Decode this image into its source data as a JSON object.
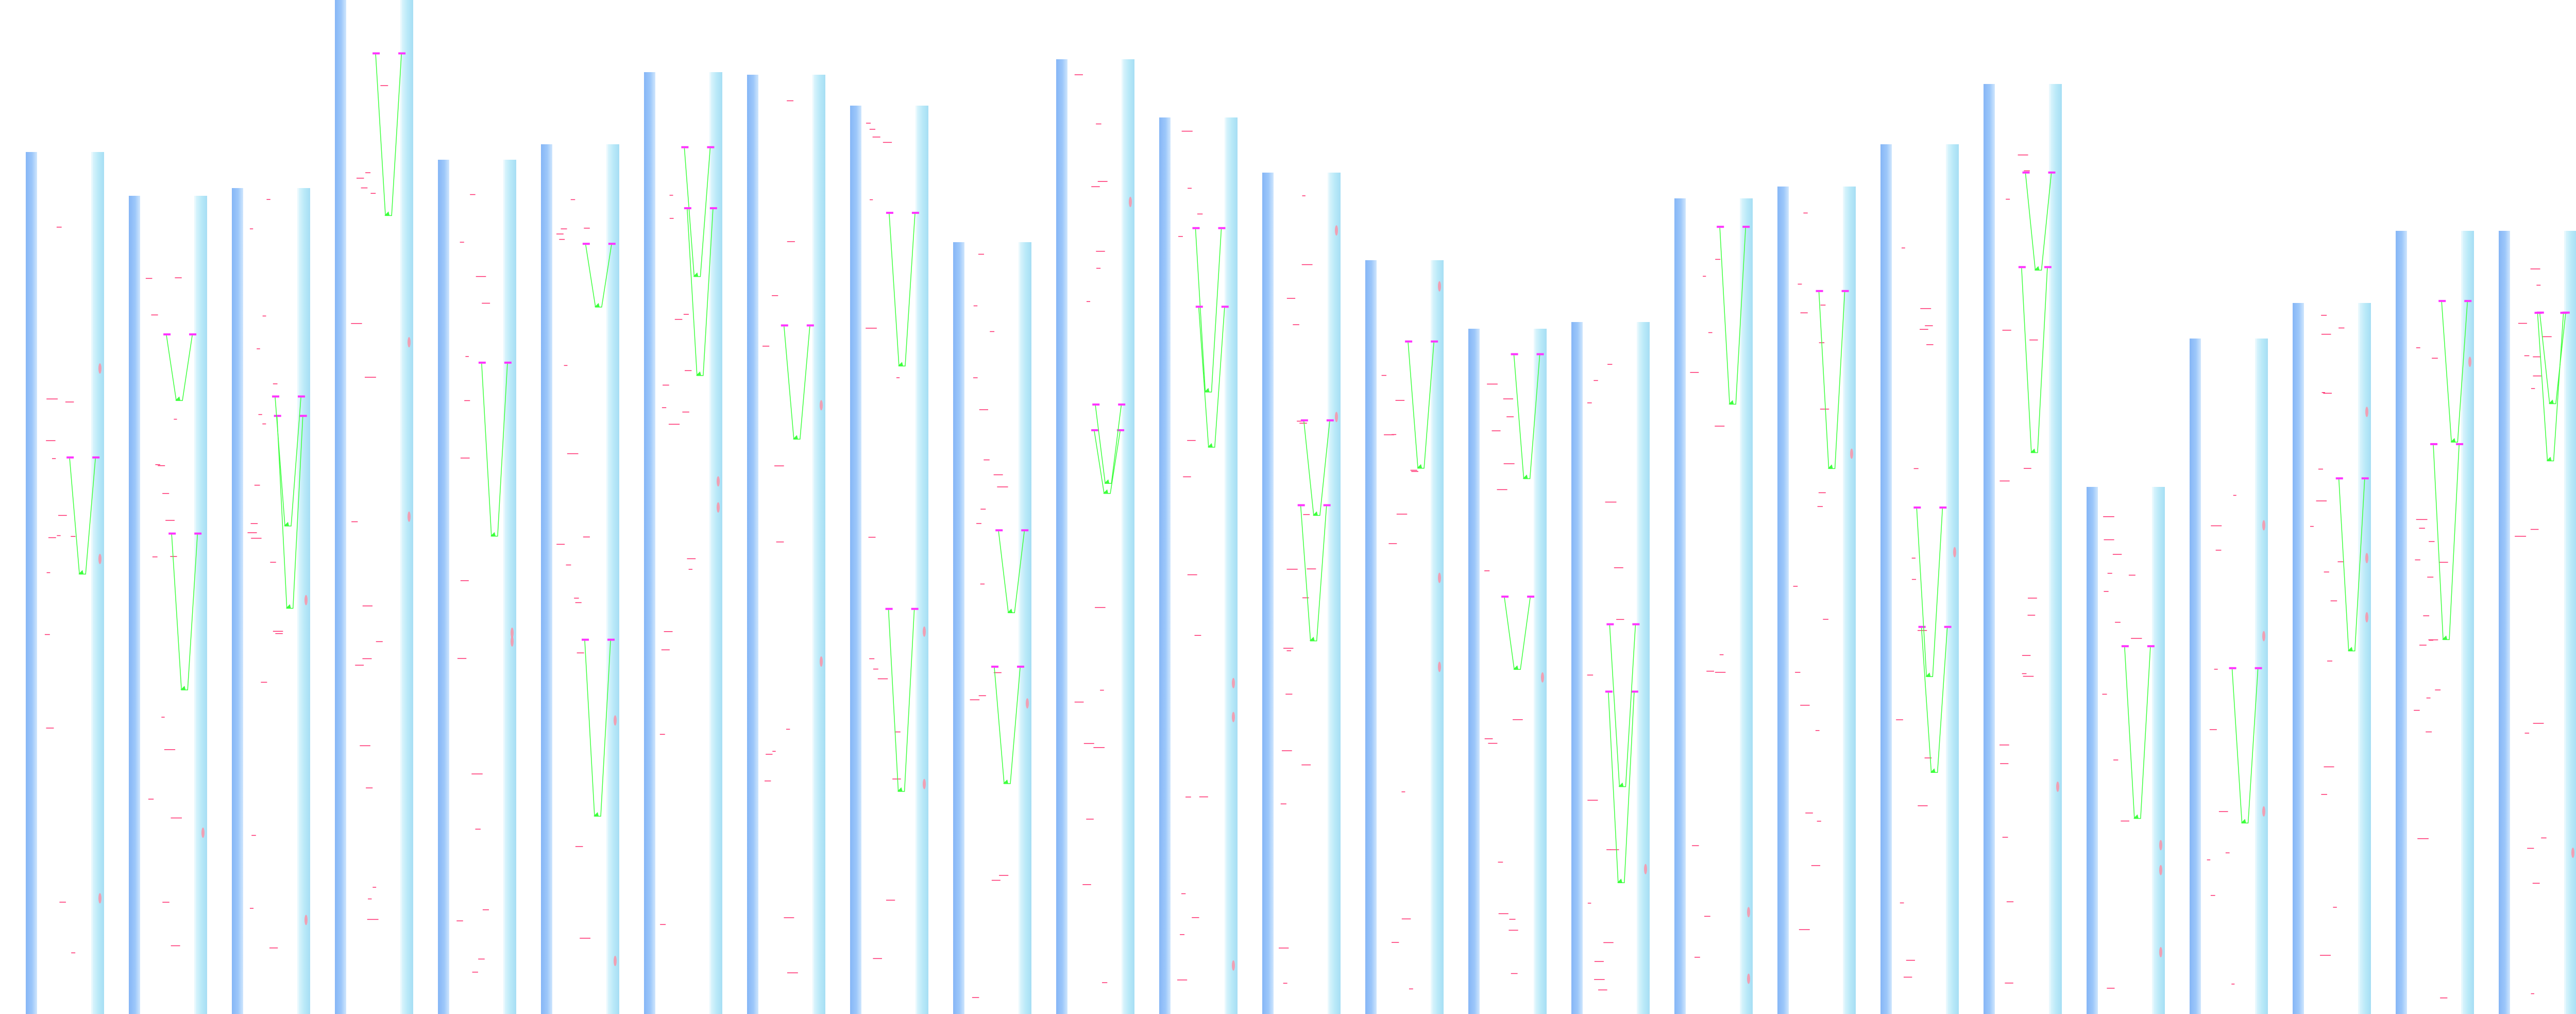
{
  "page": {
    "title": ""
  },
  "palette": {
    "background": "#ffffff",
    "left_strip": "#8fbcf7",
    "right_strip": "#b4e6f6",
    "connector": "#3cff3c",
    "label": "#ff2b6e",
    "tag": "#ff33ff",
    "highlight": "#ff8fa3"
  },
  "columns": [
    {
      "id": "c1"
    },
    {
      "id": "c2"
    },
    {
      "id": "c3"
    },
    {
      "id": "c4"
    },
    {
      "id": "c5"
    },
    {
      "id": "c6"
    },
    {
      "id": "c7"
    },
    {
      "id": "c8"
    },
    {
      "id": "c9"
    },
    {
      "id": "c10"
    },
    {
      "id": "c11"
    },
    {
      "id": "c12"
    },
    {
      "id": "c13"
    },
    {
      "id": "c14"
    },
    {
      "id": "c15"
    },
    {
      "id": "c16"
    },
    {
      "id": "c17"
    },
    {
      "id": "c18"
    },
    {
      "id": "c19"
    },
    {
      "id": "c20"
    },
    {
      "id": "c21"
    },
    {
      "id": "c22"
    },
    {
      "id": "c23"
    },
    {
      "id": "c24"
    },
    {
      "id": "c25"
    }
  ]
}
